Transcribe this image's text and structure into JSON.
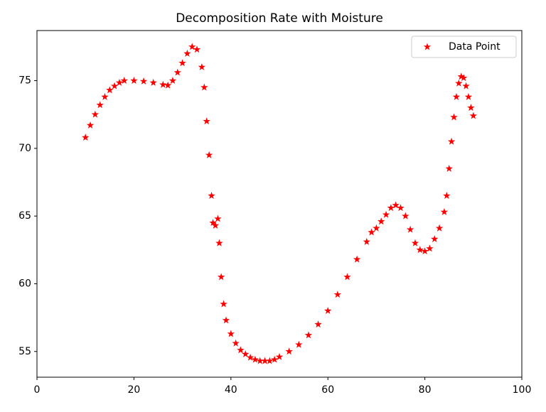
{
  "chart_data": {
    "type": "scatter",
    "title": "Decomposition Rate with Moisture",
    "series": [
      {
        "name": "Data Point",
        "color": "#ff0000",
        "marker": "star",
        "x": [
          10,
          11,
          12,
          13,
          14,
          15,
          16,
          17,
          18,
          20,
          22,
          24,
          26,
          27,
          28,
          29,
          30,
          31,
          32,
          33,
          34,
          34.5,
          35,
          35.5,
          36,
          36.3,
          36.8,
          37.3,
          37.6,
          38,
          38.5,
          39,
          40,
          41,
          42,
          43,
          44,
          45,
          46,
          47,
          48,
          49,
          50,
          52,
          54,
          56,
          58,
          60,
          62,
          64,
          66,
          68,
          69,
          70,
          71,
          72,
          73,
          74,
          75,
          76,
          77,
          78,
          79,
          80,
          81,
          82,
          83,
          84,
          84.5,
          85,
          85.5,
          86,
          86.5,
          87,
          87.5,
          88,
          88.5,
          89,
          89.5,
          90
        ],
        "values": [
          70.8,
          71.7,
          72.5,
          73.2,
          73.8,
          74.3,
          74.6,
          74.85,
          75.0,
          75.0,
          74.95,
          74.85,
          74.7,
          74.65,
          75.0,
          75.6,
          76.3,
          77.0,
          77.5,
          77.3,
          76.0,
          74.5,
          72.0,
          69.5,
          66.5,
          64.5,
          64.3,
          64.8,
          63.0,
          60.5,
          58.5,
          57.3,
          56.3,
          55.6,
          55.1,
          54.8,
          54.55,
          54.4,
          54.3,
          54.3,
          54.3,
          54.4,
          54.6,
          55.0,
          55.5,
          56.2,
          57.0,
          58.0,
          59.2,
          60.5,
          61.8,
          63.1,
          63.8,
          64.1,
          64.6,
          65.1,
          65.6,
          65.8,
          65.6,
          65.0,
          64.0,
          63.0,
          62.5,
          62.4,
          62.6,
          63.3,
          64.1,
          65.3,
          66.5,
          68.5,
          70.5,
          72.3,
          73.8,
          74.8,
          75.3,
          75.2,
          74.6,
          73.8,
          73.0,
          72.4
        ]
      }
    ],
    "xlim": [
      0,
      100
    ],
    "xticks": [
      0,
      20,
      40,
      60,
      80,
      100
    ],
    "ylim": [
      53.1,
      78.7
    ],
    "yticks": [
      55,
      60,
      65,
      70,
      75
    ],
    "grid": false,
    "legend": "upper right"
  }
}
